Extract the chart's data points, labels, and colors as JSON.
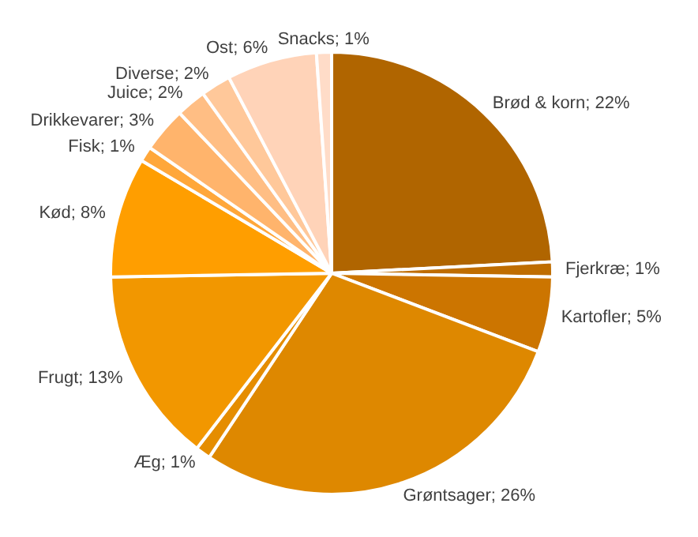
{
  "chart_data": {
    "type": "pie",
    "categories": [
      "Brød & korn",
      "Fjerkræ",
      "Kartofler",
      "Grøntsager",
      "Æg",
      "Frugt",
      "Kød",
      "Fisk",
      "Drikkevarer",
      "Juice",
      "Diverse",
      "Ost",
      "Snacks"
    ],
    "values": [
      22,
      1,
      5,
      26,
      1,
      13,
      8,
      1,
      3,
      2,
      2,
      6,
      1
    ],
    "value_labels": [
      "; 22%",
      "; 1%",
      "; 5%",
      "; 26%",
      "; 1%",
      "; 13%",
      "; 8%",
      "; 1%",
      "; 3%",
      "; 2%",
      "; 2%",
      "; 6%",
      "; 1%"
    ],
    "colors": [
      "#b06500",
      "#bf6d00",
      "#cc7500",
      "#de8800",
      "#e58d00",
      "#f29700",
      "#ff9e00",
      "#ffa73a",
      "#ffb46c",
      "#ffbe84",
      "#ffc89a",
      "#ffd3b8",
      "#ffdcc8"
    ]
  }
}
